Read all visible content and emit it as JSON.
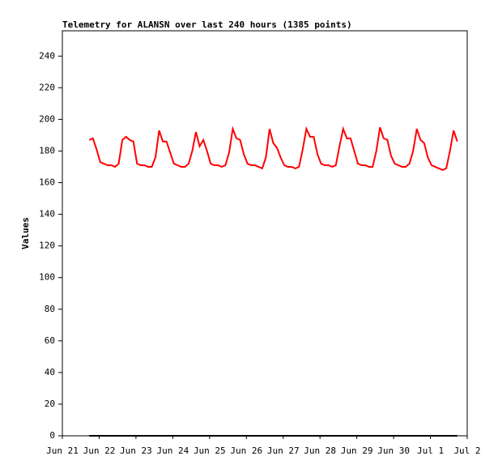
{
  "chart_data": {
    "type": "line",
    "title": "Telemetry for ALANSN over last 240 hours (1385 points)",
    "y_label": "Values",
    "xlim": [
      0,
      11
    ],
    "xticks": [
      {
        "value": 0,
        "label": "Jun 21"
      },
      {
        "value": 1,
        "label": "Jun 22"
      },
      {
        "value": 2,
        "label": "Jun 23"
      },
      {
        "value": 3,
        "label": "Jun 24"
      },
      {
        "value": 4,
        "label": "Jun 25"
      },
      {
        "value": 5,
        "label": "Jun 26"
      },
      {
        "value": 6,
        "label": "Jun 27"
      },
      {
        "value": 7,
        "label": "Jun 28"
      },
      {
        "value": 8,
        "label": "Jun 29"
      },
      {
        "value": 9,
        "label": "Jun 30"
      },
      {
        "value": 10,
        "label": "Jul 1"
      },
      {
        "value": 11,
        "label": "Jul 2"
      }
    ],
    "ylim": [
      0,
      256
    ],
    "yticks": [
      0,
      20,
      40,
      60,
      80,
      100,
      120,
      140,
      160,
      180,
      200,
      220,
      240
    ],
    "series": [
      {
        "color": "#ff0000",
        "x": [
          0.73,
          0.83,
          0.93,
          1.03,
          1.13,
          1.23,
          1.33,
          1.43,
          1.53,
          1.63,
          1.73,
          1.83,
          1.93,
          2.03,
          2.13,
          2.23,
          2.33,
          2.43,
          2.53,
          2.63,
          2.73,
          2.83,
          2.93,
          3.03,
          3.13,
          3.23,
          3.33,
          3.43,
          3.53,
          3.63,
          3.73,
          3.83,
          3.93,
          4.03,
          4.13,
          4.23,
          4.33,
          4.43,
          4.53,
          4.63,
          4.73,
          4.83,
          4.93,
          5.03,
          5.13,
          5.23,
          5.33,
          5.43,
          5.53,
          5.63,
          5.73,
          5.83,
          5.93,
          6.03,
          6.13,
          6.23,
          6.33,
          6.43,
          6.53,
          6.63,
          6.73,
          6.83,
          6.93,
          7.03,
          7.13,
          7.23,
          7.33,
          7.43,
          7.53,
          7.63,
          7.73,
          7.83,
          7.93,
          8.03,
          8.13,
          8.23,
          8.33,
          8.43,
          8.53,
          8.63,
          8.73,
          8.83,
          8.93,
          9.03,
          9.13,
          9.23,
          9.33,
          9.43,
          9.53,
          9.63,
          9.73,
          9.83,
          9.93,
          10.03,
          10.13,
          10.23,
          10.33,
          10.43,
          10.53,
          10.63,
          10.73
        ],
        "values": [
          187,
          188,
          181,
          173,
          172,
          171,
          171,
          170,
          172,
          187,
          189,
          187,
          186,
          172,
          171,
          171,
          170,
          170,
          176,
          193,
          186,
          186,
          179,
          172,
          171,
          170,
          170,
          172,
          180,
          192,
          183,
          187,
          180,
          172,
          171,
          171,
          170,
          171,
          179,
          194,
          188,
          187,
          178,
          172,
          171,
          171,
          170,
          169,
          176,
          194,
          185,
          182,
          176,
          171,
          170,
          170,
          169,
          170,
          181,
          194,
          189,
          189,
          178,
          172,
          171,
          171,
          170,
          171,
          183,
          194,
          188,
          188,
          180,
          172,
          171,
          171,
          170,
          170,
          180,
          195,
          188,
          187,
          177,
          172,
          171,
          170,
          170,
          172,
          180,
          194,
          187,
          185,
          176,
          171,
          170,
          169,
          168,
          169,
          180,
          193,
          186
        ]
      },
      {
        "color": "#000000",
        "x": [
          0.73,
          10.73
        ],
        "values": [
          0,
          0
        ]
      }
    ]
  }
}
